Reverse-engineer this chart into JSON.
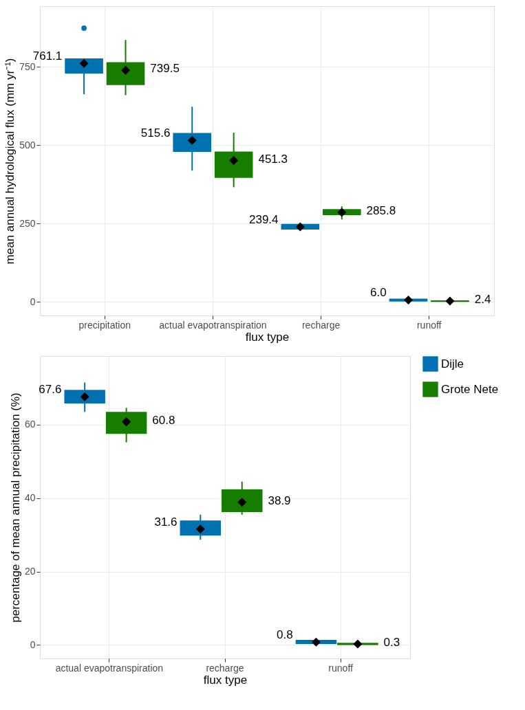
{
  "chart_data": [
    {
      "type": "box",
      "categories": [
        "precipitation",
        "actual evapotranspiration",
        "recharge",
        "runoff"
      ],
      "xlabel": "flux type",
      "ylabel": "mean annual hydrological flux (mm yr⁻¹)",
      "ylim": [
        -43.5,
        944
      ],
      "yticks": [
        0,
        250,
        500,
        750
      ],
      "grid": true,
      "series": [
        {
          "color": "#0072b2",
          "boxes": [
            {
              "low": 663,
              "q1": 729,
              "median": 761,
              "q3": 777,
              "high": 777,
              "mean": 761.1,
              "outliers": [
                874
              ]
            },
            {
              "low": 419,
              "q1": 479,
              "median": 516,
              "q3": 539,
              "high": 623,
              "mean": 515.6
            },
            {
              "low": 231,
              "q1": 231,
              "median": 239,
              "q3": 249,
              "high": 249,
              "mean": 239.4
            },
            {
              "low": 0,
              "q1": 1,
              "median": 6,
              "q3": 10,
              "high": 10,
              "mean": 6.0
            }
          ],
          "value_labels": [
            "761.1",
            "515.6",
            "239.4",
            "6.0"
          ]
        },
        {
          "color": "#167d00",
          "boxes": [
            {
              "low": 660,
              "q1": 692,
              "median": 740,
              "q3": 765,
              "high": 836,
              "mean": 739.5
            },
            {
              "low": 366,
              "q1": 396,
              "median": 451,
              "q3": 480,
              "high": 540,
              "mean": 451.3
            },
            {
              "low": 263,
              "q1": 277,
              "median": 286,
              "q3": 296,
              "high": 305,
              "mean": 285.8
            },
            {
              "low": 0,
              "q1": 0,
              "median": 2,
              "q3": 5,
              "high": 5,
              "mean": 2.4
            }
          ],
          "value_labels": [
            "739.5",
            "451.3",
            "285.8",
            "2.4"
          ]
        }
      ]
    },
    {
      "type": "box",
      "categories": [
        "actual evapotranspiration",
        "recharge",
        "runoff"
      ],
      "xlabel": "flux type",
      "ylabel": "percentage of mean annual precipitation (%)",
      "ylim": [
        -3.65,
        78.7
      ],
      "yticks": [
        0,
        20,
        40,
        60
      ],
      "grid": true,
      "legend": "right",
      "series": [
        {
          "name": "Dijle",
          "color": "#0072b2",
          "boxes": [
            {
              "low": 63.5,
              "q1": 65.8,
              "median": 67.6,
              "q3": 69.5,
              "high": 71.5,
              "mean": 67.6
            },
            {
              "low": 28.7,
              "q1": 29.8,
              "median": 31.6,
              "q3": 33.9,
              "high": 35.5,
              "mean": 31.6
            },
            {
              "low": 0.3,
              "q1": 0.3,
              "median": 0.8,
              "q3": 1.4,
              "high": 1.4,
              "mean": 0.8
            }
          ],
          "value_labels": [
            "67.6",
            "31.6",
            "0.8"
          ]
        },
        {
          "name": "Grote Nete",
          "color": "#167d00",
          "boxes": [
            {
              "low": 55.2,
              "q1": 57.5,
              "median": 60.8,
              "q3": 63.5,
              "high": 64.6,
              "mean": 60.8
            },
            {
              "low": 35.5,
              "q1": 36.2,
              "median": 38.9,
              "q3": 42.4,
              "high": 44.5,
              "mean": 38.9
            },
            {
              "low": 0,
              "q1": 0,
              "median": 0.3,
              "q3": 0.6,
              "high": 0.6,
              "mean": 0.3
            }
          ],
          "value_labels": [
            "60.8",
            "38.9",
            "0.3"
          ]
        }
      ]
    }
  ]
}
